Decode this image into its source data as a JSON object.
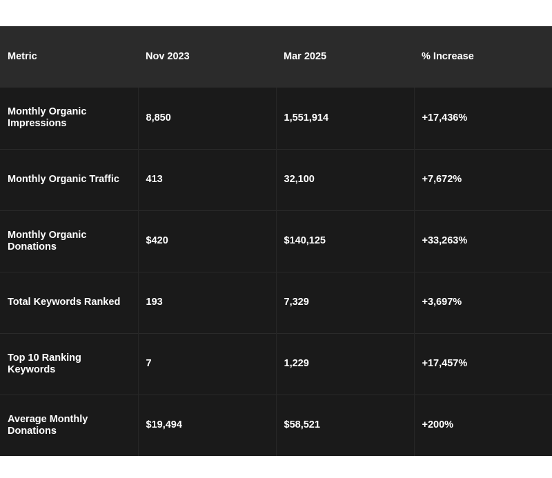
{
  "chart_data": {
    "type": "table",
    "columns": [
      "Metric",
      "Nov 2023",
      "Mar 2025",
      "% Increase"
    ],
    "rows": [
      [
        "Monthly Organic Impressions",
        "8,850",
        "1,551,914",
        "+17,436%"
      ],
      [
        "Monthly Organic Traffic",
        "413",
        "32,100",
        "+7,672%"
      ],
      [
        "Monthly Organic Donations",
        "$420",
        "$140,125",
        "+33,263%"
      ],
      [
        "Total Keywords Ranked",
        "193",
        "7,329",
        "+3,697%"
      ],
      [
        "Top 10 Ranking Keywords",
        "7",
        "1,229",
        "+17,457%"
      ],
      [
        "Average Monthly Donations",
        "$19,494",
        "$58,521",
        "+200%"
      ]
    ],
    "colors": {
      "header_bg": "#2b2b2b",
      "body_bg": "#1a1a1a",
      "text": "#ffffff"
    }
  }
}
